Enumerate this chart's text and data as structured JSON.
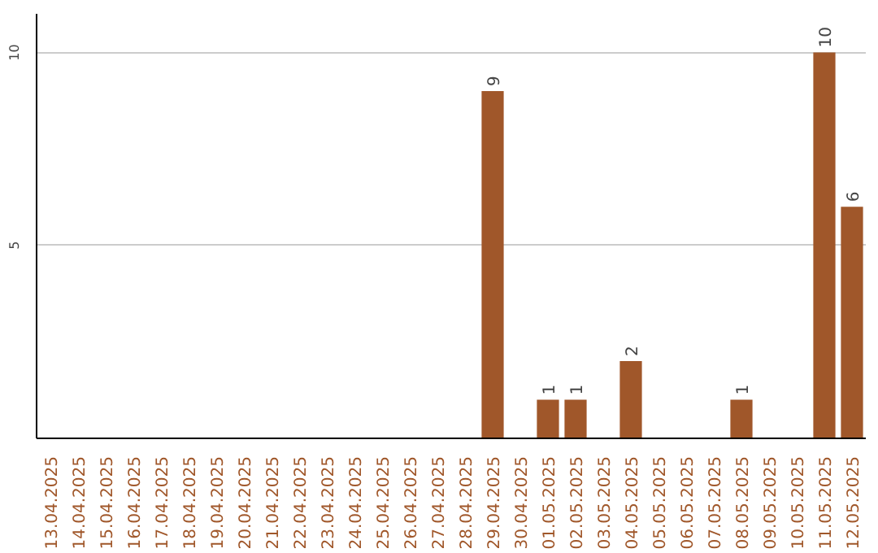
{
  "chart_data": {
    "type": "bar",
    "categories": [
      "13.04.2025",
      "14.04.2025",
      "15.04.2025",
      "16.04.2025",
      "17.04.2025",
      "18.04.2025",
      "19.04.2025",
      "20.04.2025",
      "21.04.2025",
      "22.04.2025",
      "23.04.2025",
      "24.04.2025",
      "25.04.2025",
      "26.04.2025",
      "27.04.2025",
      "28.04.2025",
      "29.04.2025",
      "30.04.2025",
      "01.05.2025",
      "02.05.2025",
      "03.05.2025",
      "04.05.2025",
      "05.05.2025",
      "06.05.2025",
      "07.05.2025",
      "08.05.2025",
      "09.05.2025",
      "10.05.2025",
      "11.05.2025",
      "12.05.2025"
    ],
    "values": [
      0,
      0,
      0,
      0,
      0,
      0,
      0,
      0,
      0,
      0,
      0,
      0,
      0,
      0,
      0,
      0,
      9,
      0,
      1,
      1,
      0,
      2,
      0,
      0,
      0,
      1,
      0,
      0,
      10,
      6
    ],
    "value_labels": [
      null,
      null,
      null,
      null,
      null,
      null,
      null,
      null,
      null,
      null,
      null,
      null,
      null,
      null,
      null,
      null,
      "9",
      null,
      "1",
      "1",
      null,
      "2",
      null,
      null,
      null,
      "1",
      null,
      null,
      "10",
      "6"
    ],
    "color": "#a0572a",
    "ylim": [
      0,
      11
    ],
    "yticks": [
      5,
      10
    ],
    "grid": "y"
  }
}
